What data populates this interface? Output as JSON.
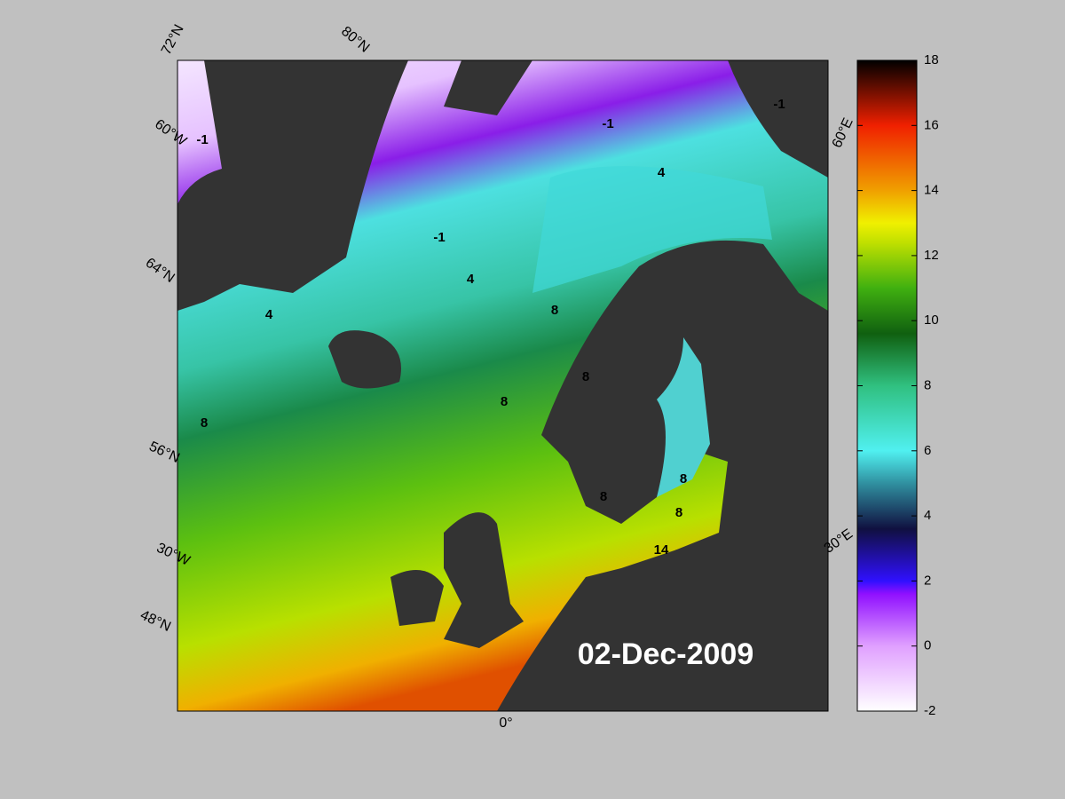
{
  "map_title": "02-Dec-2009",
  "colorbar": {
    "lim": [
      -2,
      18
    ],
    "ticks": [
      -2,
      0,
      2,
      4,
      6,
      8,
      10,
      12,
      14,
      16,
      18
    ]
  },
  "graticule_labels": [
    "72°N",
    "80°N",
    "60°W",
    "64°N",
    "56°N",
    "30°W",
    "48°N",
    "0°",
    "60°E",
    "30°E"
  ],
  "contour_labels": [
    -1,
    -1,
    -1,
    -1,
    4,
    4,
    4,
    8,
    8,
    8,
    8,
    8,
    8,
    8,
    14
  ]
}
